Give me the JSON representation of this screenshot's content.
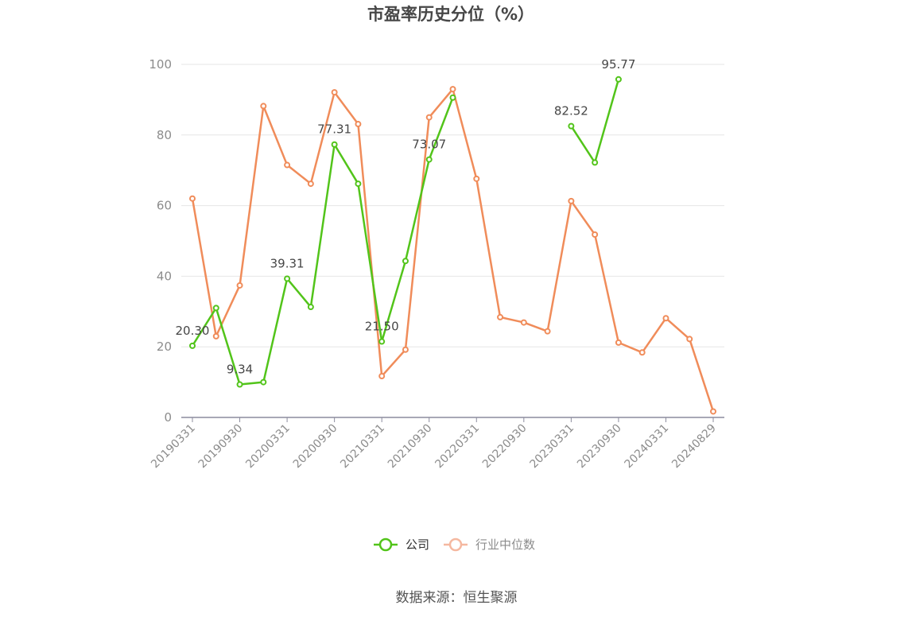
{
  "source": "数据来源：恒生聚源",
  "chart_data": {
    "type": "line",
    "title": "市盈率历史分位（%）",
    "xlabel": "",
    "ylabel": "",
    "ylim": [
      0,
      100
    ],
    "yticks": [
      0,
      20,
      40,
      60,
      80,
      100
    ],
    "grid": true,
    "legend_position": "bottom-center",
    "x": [
      "20190331",
      "20190630",
      "20190930",
      "20191231",
      "20200331",
      "20200630",
      "20200930",
      "20201231",
      "20210331",
      "20210630",
      "20210930",
      "20211231",
      "20220331",
      "20220630",
      "20220930",
      "20221231",
      "20230331",
      "20230630",
      "20230930",
      "20231231",
      "20240331",
      "20240630",
      "20240829"
    ],
    "x_tick_labels": [
      "20190331",
      "20190930",
      "20200331",
      "20200930",
      "20210331",
      "20210930",
      "20220331",
      "20220930",
      "20230331",
      "20230930",
      "20240331",
      "20240829"
    ],
    "series": [
      {
        "name": "公司",
        "color": "#52c41a",
        "values": [
          20.3,
          31.0,
          9.34,
          10.0,
          39.31,
          31.3,
          77.31,
          66.2,
          21.5,
          44.3,
          73.07,
          90.6,
          null,
          null,
          null,
          null,
          82.52,
          72.2,
          95.77,
          null,
          null,
          null,
          null
        ],
        "labeled_points": [
          {
            "index": 0,
            "text": "20.30"
          },
          {
            "index": 2,
            "text": "9.34"
          },
          {
            "index": 4,
            "text": "39.31"
          },
          {
            "index": 6,
            "text": "77.31"
          },
          {
            "index": 8,
            "text": "21.50"
          },
          {
            "index": 10,
            "text": "73.07"
          },
          {
            "index": 16,
            "text": "82.52"
          },
          {
            "index": 18,
            "text": "95.77"
          }
        ]
      },
      {
        "name": "行业中位数",
        "color": "#f08c5a",
        "legend_color": "#f5b8a0",
        "values": [
          62.0,
          23.0,
          37.4,
          88.2,
          71.5,
          66.2,
          92.1,
          83.1,
          11.7,
          19.2,
          85.0,
          93.0,
          67.6,
          28.4,
          26.9,
          24.4,
          61.3,
          51.8,
          21.2,
          18.4,
          28.1,
          22.2,
          1.7
        ]
      }
    ]
  }
}
